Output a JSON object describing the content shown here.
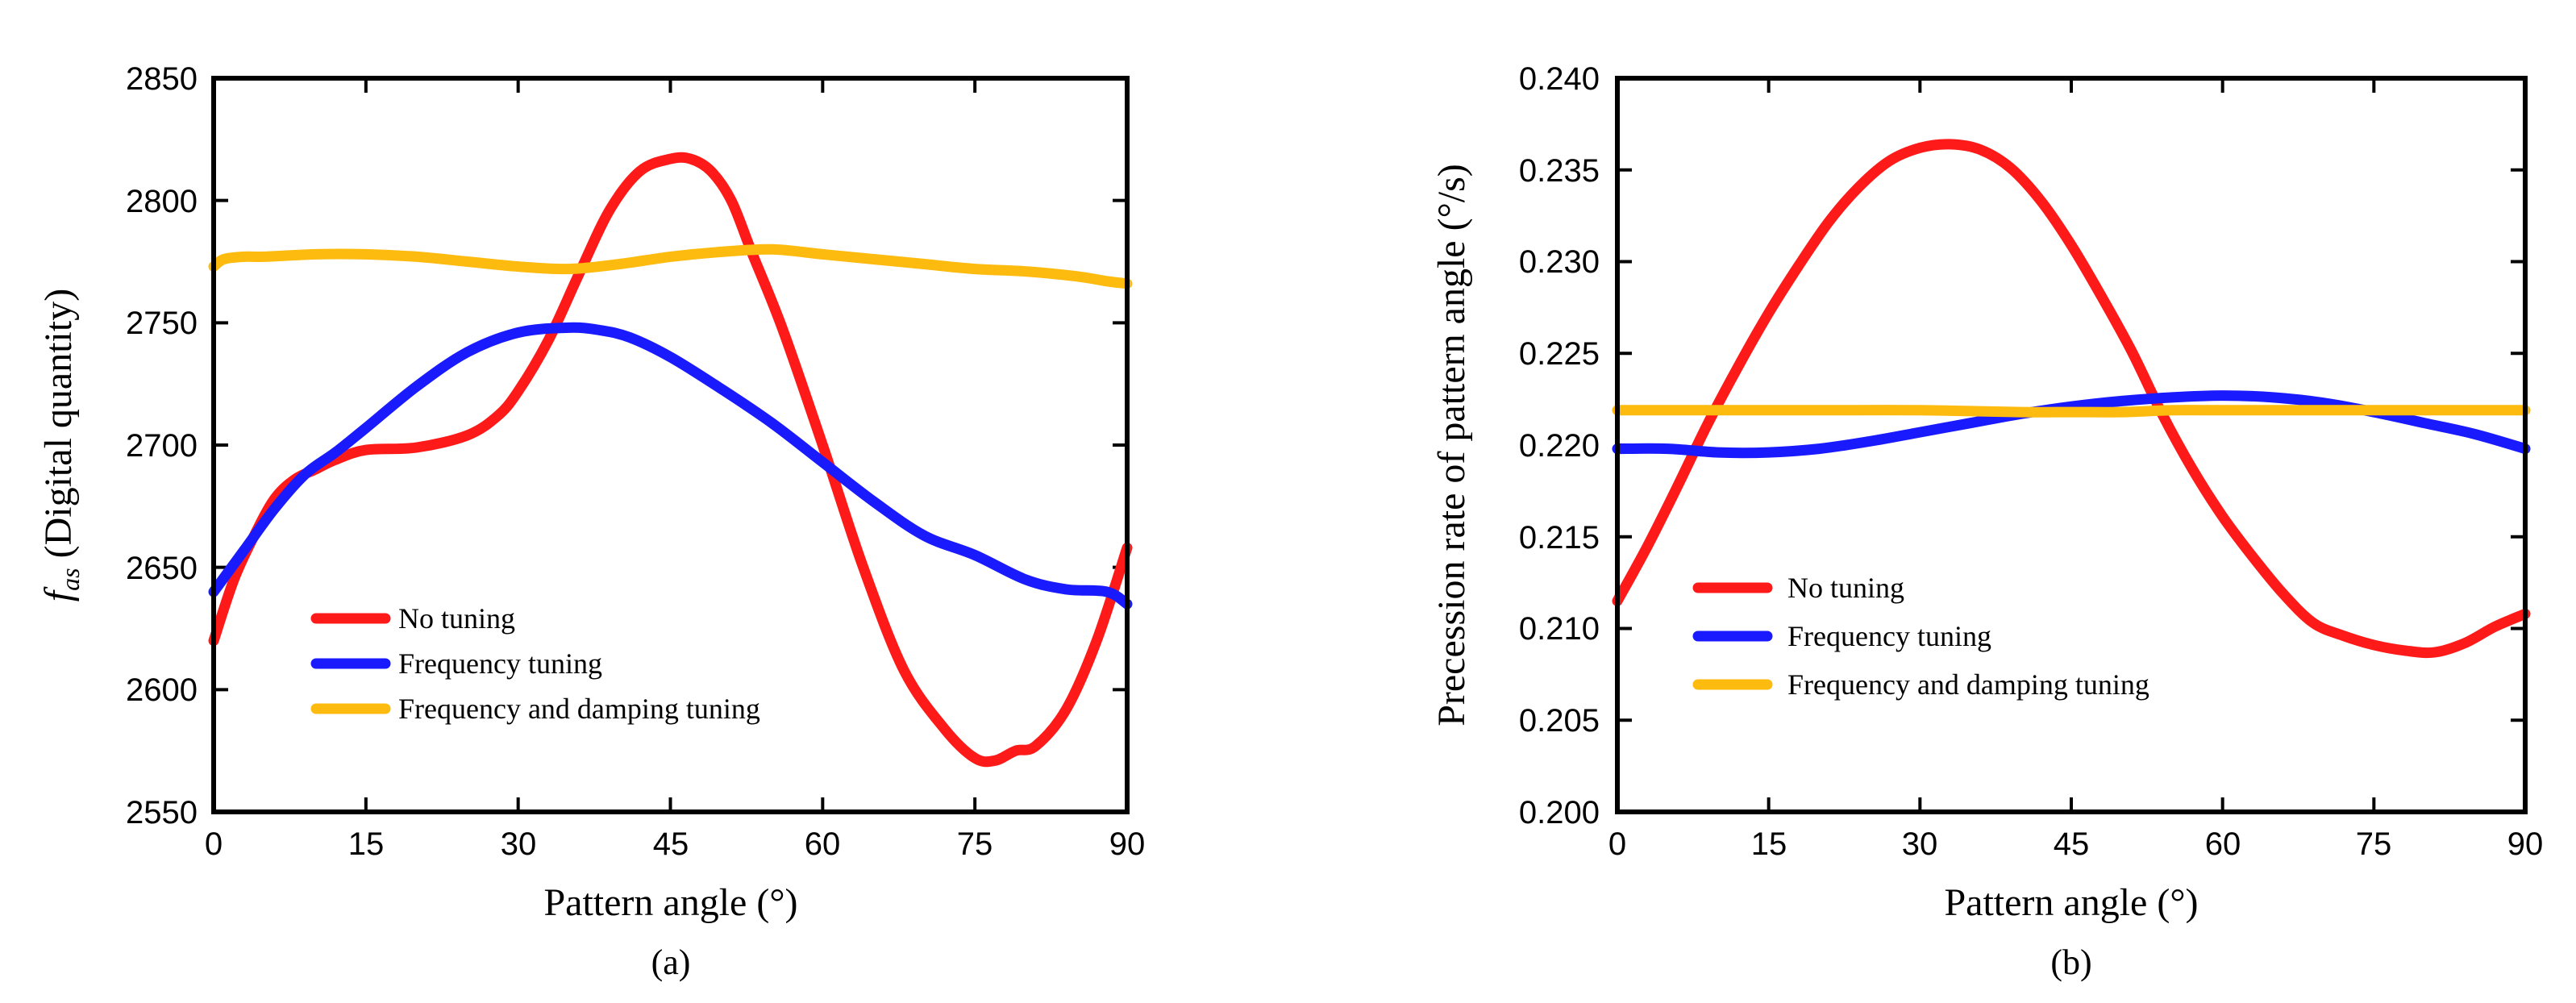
{
  "chart_data": [
    {
      "type": "line",
      "panel": "a",
      "caption": "(a)",
      "xlabel": "Pattern angle (°)",
      "ylabel": {
        "prefix": "f",
        "sub": "as",
        "suffix": " (Digital quantity)"
      },
      "xlim": [
        0,
        90
      ],
      "ylim": [
        2550,
        2850
      ],
      "xticks": [
        0,
        15,
        30,
        45,
        60,
        75,
        90
      ],
      "yticks": [
        2550,
        2600,
        2650,
        2700,
        2750,
        2800,
        2850
      ],
      "ytick_labels": [
        "2550",
        "2600",
        "2650",
        "2700",
        "2750",
        "2800",
        "2850"
      ],
      "legend_position": "lower-left",
      "series": [
        {
          "name": "No tuning",
          "color": "#ff1a1a",
          "x": [
            0,
            2,
            4,
            6,
            8,
            10,
            12,
            15,
            20,
            25,
            28,
            30,
            33,
            36,
            39,
            42,
            45,
            47,
            49,
            51,
            53,
            56,
            60,
            64,
            68,
            72,
            75,
            77,
            79,
            81,
            84,
            87,
            90
          ],
          "y": [
            2620,
            2645,
            2663,
            2678,
            2686,
            2690,
            2694,
            2698,
            2699,
            2704,
            2712,
            2722,
            2743,
            2770,
            2796,
            2812,
            2817,
            2817,
            2812,
            2800,
            2779,
            2748,
            2700,
            2650,
            2608,
            2584,
            2572,
            2571,
            2575,
            2577,
            2592,
            2620,
            2658
          ]
        },
        {
          "name": "Frequency tuning",
          "color": "#1a1aff",
          "x": [
            0,
            3,
            6,
            9,
            12,
            15,
            20,
            25,
            30,
            35,
            38,
            41,
            45,
            50,
            55,
            60,
            65,
            70,
            75,
            80,
            84,
            88,
            90
          ],
          "y": [
            2640,
            2657,
            2674,
            2688,
            2697,
            2707,
            2724,
            2738,
            2746,
            2748,
            2747,
            2744,
            2736,
            2723,
            2709,
            2693,
            2677,
            2663,
            2655,
            2645,
            2641,
            2640,
            2635
          ]
        },
        {
          "name": "Frequency and damping tuning",
          "color": "#fdbb10",
          "x": [
            0,
            1,
            3,
            5,
            10,
            15,
            20,
            25,
            30,
            35,
            40,
            45,
            50,
            55,
            60,
            65,
            70,
            75,
            80,
            85,
            88,
            90
          ],
          "y": [
            2773,
            2776,
            2777,
            2777,
            2778,
            2778,
            2777,
            2775,
            2773,
            2772,
            2774,
            2777,
            2779,
            2780,
            2778,
            2776,
            2774,
            2772,
            2771,
            2769,
            2767,
            2766
          ]
        }
      ]
    },
    {
      "type": "line",
      "panel": "b",
      "caption": "(b)",
      "xlabel": "Pattern angle (°)",
      "ylabel": "Precession rate of pattern angle (°/s)",
      "xlim": [
        0,
        90
      ],
      "ylim": [
        0.2,
        0.24
      ],
      "xticks": [
        0,
        15,
        30,
        45,
        60,
        75,
        90
      ],
      "yticks": [
        0.2,
        0.205,
        0.21,
        0.215,
        0.22,
        0.225,
        0.23,
        0.235,
        0.24
      ],
      "ytick_labels": [
        "0.200",
        "0.205",
        "0.210",
        "0.215",
        "0.220",
        "0.225",
        "0.230",
        "0.235",
        "0.240"
      ],
      "legend_position": "lower-left",
      "series": [
        {
          "name": "No tuning",
          "color": "#ff1a1a",
          "x": [
            0,
            3,
            6,
            9,
            12,
            15,
            18,
            21,
            24,
            27,
            30,
            33,
            36,
            39,
            42,
            45,
            48,
            51,
            54,
            57,
            60,
            63,
            66,
            69,
            72,
            75,
            78,
            81,
            84,
            87,
            90
          ],
          "y": [
            0.2115,
            0.2145,
            0.2178,
            0.2212,
            0.2243,
            0.2272,
            0.2298,
            0.2322,
            0.2341,
            0.2355,
            0.2362,
            0.2364,
            0.2361,
            0.2351,
            0.2333,
            0.2309,
            0.2281,
            0.2251,
            0.2217,
            0.2187,
            0.2161,
            0.2139,
            0.2119,
            0.2103,
            0.2096,
            0.2091,
            0.2088,
            0.2087,
            0.2092,
            0.2101,
            0.2108
          ]
        },
        {
          "name": "Frequency tuning",
          "color": "#1a1aff",
          "x": [
            0,
            5,
            10,
            15,
            20,
            25,
            30,
            35,
            40,
            45,
            50,
            55,
            60,
            65,
            70,
            75,
            80,
            85,
            90
          ],
          "y": [
            0.2198,
            0.2198,
            0.2196,
            0.2196,
            0.2198,
            0.2202,
            0.2207,
            0.2212,
            0.2217,
            0.2221,
            0.2224,
            0.2226,
            0.2227,
            0.2226,
            0.2223,
            0.2218,
            0.2212,
            0.2206,
            0.2198
          ]
        },
        {
          "name": "Frequency and damping tuning",
          "color": "#fdbb10",
          "x": [
            0,
            10,
            20,
            30,
            40,
            45,
            50,
            55,
            60,
            65,
            70,
            75,
            80,
            85,
            90
          ],
          "y": [
            0.2219,
            0.2219,
            0.2219,
            0.2219,
            0.2218,
            0.2218,
            0.2218,
            0.2219,
            0.2219,
            0.2219,
            0.2219,
            0.2219,
            0.2219,
            0.2219,
            0.2219
          ]
        }
      ]
    }
  ]
}
